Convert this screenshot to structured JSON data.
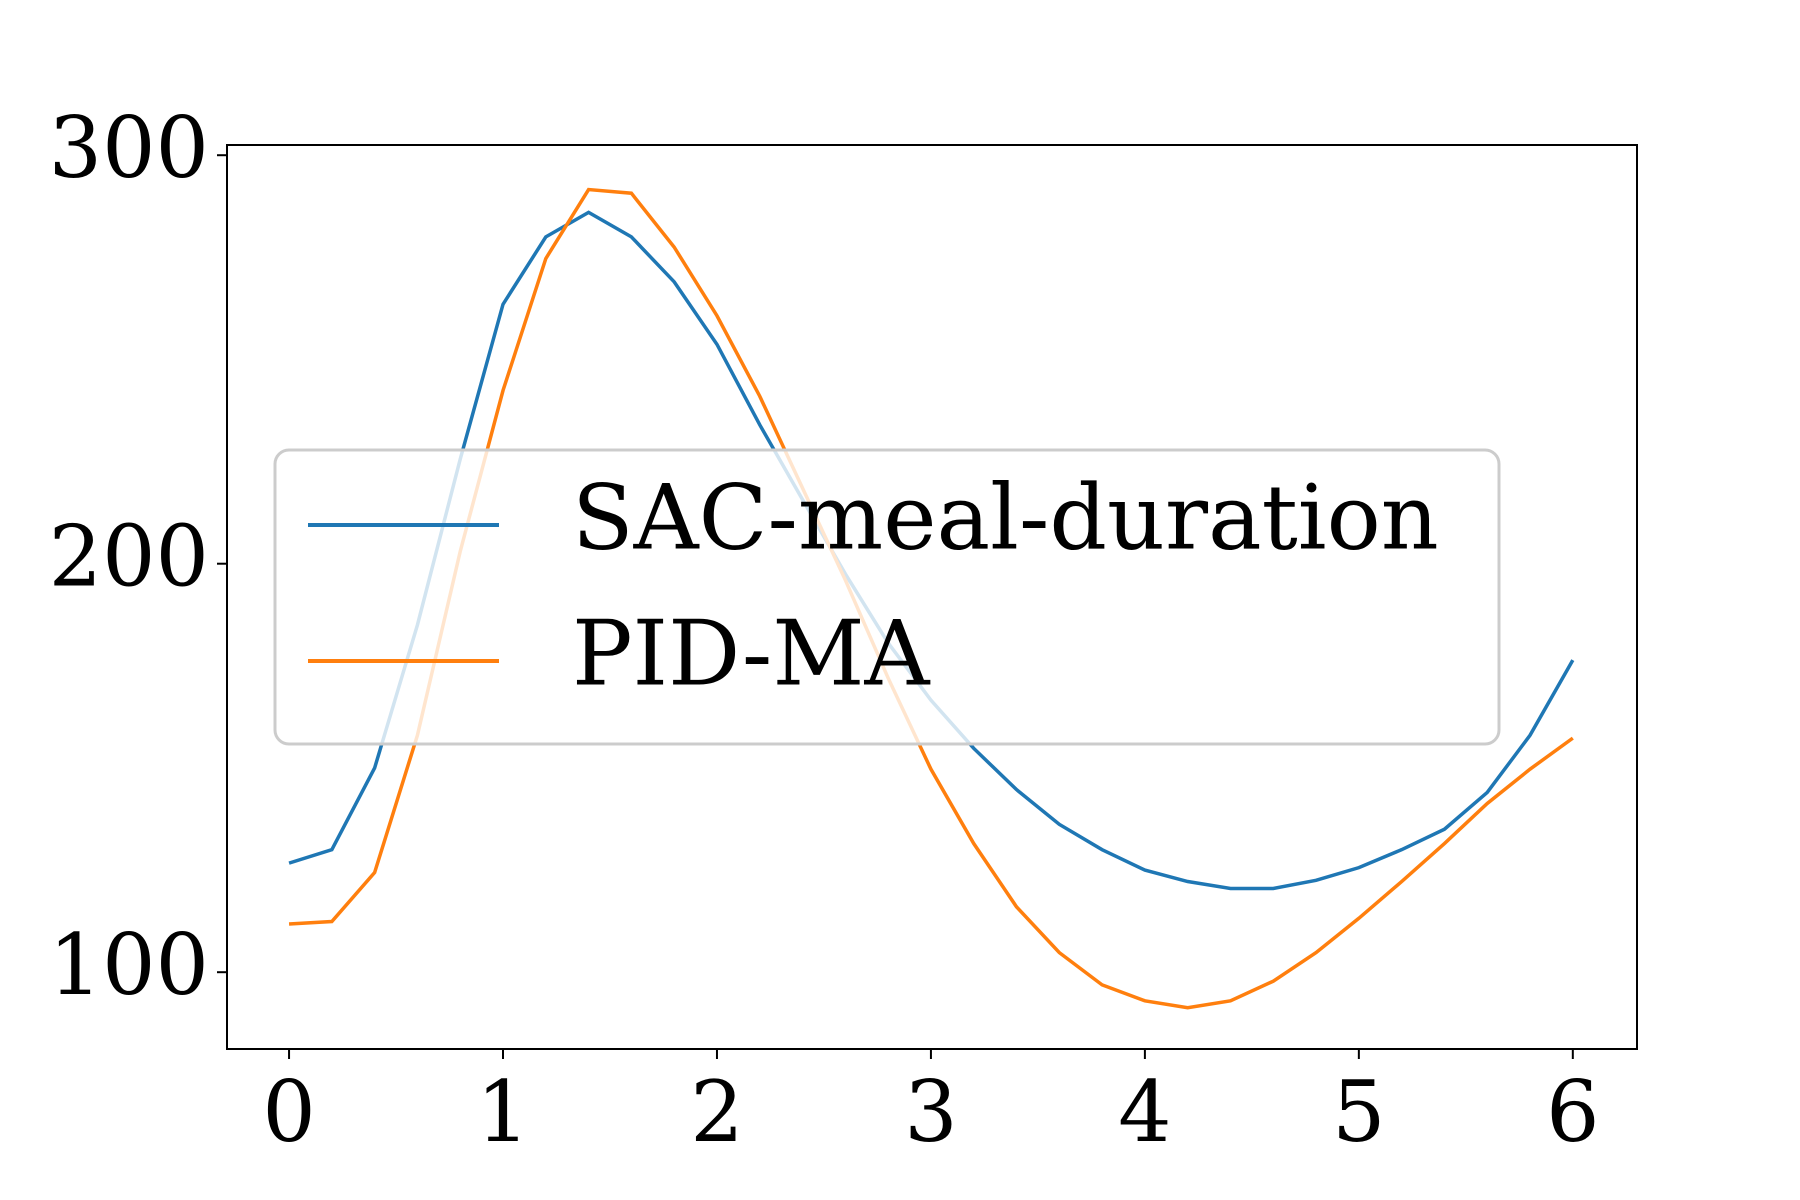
{
  "chart_data": {
    "type": "line",
    "x": [
      0,
      0.2,
      0.4,
      0.6,
      0.8,
      1.0,
      1.2,
      1.4,
      1.6,
      1.8,
      2.0,
      2.2,
      2.4,
      2.6,
      2.8,
      3.0,
      3.2,
      3.4,
      3.6,
      3.8,
      4.0,
      4.2,
      4.4,
      4.6,
      4.8,
      5.0,
      5.2,
      5.4,
      5.6,
      5.8,
      6.0
    ],
    "series": [
      {
        "name": "SAC-meal-duration",
        "color": "#1f77b4",
        "values": [
          126.7,
          130,
          150,
          185,
          225.6,
          263.5,
          280,
          286,
          280,
          269,
          253.7,
          234,
          215.7,
          197.5,
          180.6,
          166.6,
          154.8,
          144.7,
          136.2,
          130,
          125,
          122.2,
          120.5,
          120.5,
          122.5,
          125.6,
          130,
          135,
          144,
          158,
          176.4
        ]
      },
      {
        "name": "PID-MA",
        "color": "#ff7f0e",
        "values": [
          111.8,
          112.4,
          124.4,
          158,
          203,
          242.4,
          274.7,
          291.6,
          290.7,
          277.5,
          260.7,
          241,
          218.5,
          196,
          172,
          149.7,
          131.5,
          116,
          104.8,
          96.9,
          93,
          91.3,
          93,
          97.8,
          104.8,
          113.2,
          122.2,
          131.5,
          141.3,
          149.7,
          157.3
        ]
      }
    ],
    "xlim": [
      -0.29,
      6.3
    ],
    "xticks": [
      0,
      1,
      2,
      3,
      4,
      5,
      6
    ],
    "ylim": [
      81.2,
      302.5
    ],
    "yticks": [
      100,
      200,
      300
    ],
    "legend": "center-left"
  }
}
